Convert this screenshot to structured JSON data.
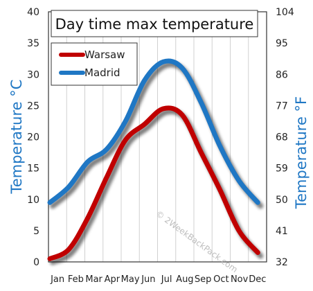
{
  "chart_data": {
    "type": "line",
    "title": "Day time max temperature",
    "categories": [
      "Jan",
      "Feb",
      "Mar",
      "Apr",
      "May",
      "Jun",
      "Jul",
      "Aug",
      "Sep",
      "Oct",
      "Nov",
      "Dec"
    ],
    "series": [
      {
        "name": "Warsaw",
        "color": "#c00000",
        "values": [
          0.5,
          2,
          7,
          13.5,
          19.5,
          22,
          24.5,
          23.5,
          17.5,
          11.5,
          5,
          1.5
        ]
      },
      {
        "name": "Madrid",
        "color": "#1f77c4",
        "values": [
          9.5,
          12,
          16,
          18,
          22.5,
          29,
          32,
          31,
          25.5,
          18.5,
          13,
          9.5
        ]
      }
    ],
    "ylabel_left": "Temperature °C",
    "ylabel_right": "Temperature °F",
    "ylim_left": [
      0,
      40
    ],
    "yticks_left": [
      "0",
      "5",
      "10",
      "15",
      "20",
      "25",
      "30",
      "35",
      "40"
    ],
    "yticks_right": [
      "32",
      "41",
      "50",
      "59",
      "68",
      "77",
      "86",
      "95",
      "104"
    ],
    "grid": "vertical",
    "legend_position": "top-left",
    "watermark": "© 2WeekBackPack.com"
  }
}
